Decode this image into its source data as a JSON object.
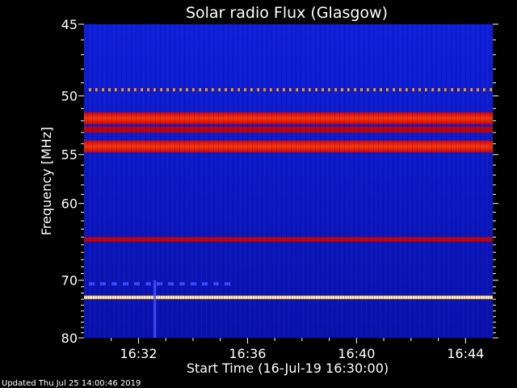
{
  "chart_data": {
    "type": "heatmap",
    "title": "Solar radio Flux (Glasgow)",
    "xlabel": "Start Time (16-Jul-19 16:30:00)",
    "ylabel": "Frequency [MHz]",
    "x_ticks": [
      "16:32",
      "16:36",
      "16:40",
      "16:44"
    ],
    "x_tick_minutes": [
      2,
      6,
      10,
      14
    ],
    "x_range_minutes": [
      0,
      15
    ],
    "y_ticks": [
      45,
      50,
      55,
      60,
      70,
      80
    ],
    "y_range_mhz": [
      45,
      80
    ],
    "y_scale": "reciprocal",
    "colormap": [
      "#000070",
      "#0a1ad8",
      "#cc0000",
      "#ff2000",
      "#ffb000",
      "#ffffff"
    ],
    "background_level": "low (blue)",
    "bands": [
      {
        "freq_start_mhz": 49.4,
        "freq_end_mhz": 49.6,
        "level": "dashed orange/yellow"
      },
      {
        "freq_start_mhz": 51.3,
        "freq_end_mhz": 52.3,
        "level": "high (orange-red)"
      },
      {
        "freq_start_mhz": 52.5,
        "freq_end_mhz": 53.0,
        "level": "medium (red)"
      },
      {
        "freq_start_mhz": 53.7,
        "freq_end_mhz": 54.8,
        "level": "high (red)"
      },
      {
        "freq_start_mhz": 64.0,
        "freq_end_mhz": 64.6,
        "level": "medium (red)"
      },
      {
        "freq_start_mhz": 70.3,
        "freq_end_mhz": 70.5,
        "level": "dashed blue"
      },
      {
        "freq_start_mhz": 72.4,
        "freq_end_mhz": 73.0,
        "level": "saturated (white-yellow)"
      }
    ],
    "events": [
      {
        "time_minutes": 2.6,
        "freq_start_mhz": 70,
        "freq_end_mhz": 80,
        "description": "faint vertical streak"
      }
    ]
  },
  "footer": "Updated Thu Jul 25 14:00:46 2019"
}
